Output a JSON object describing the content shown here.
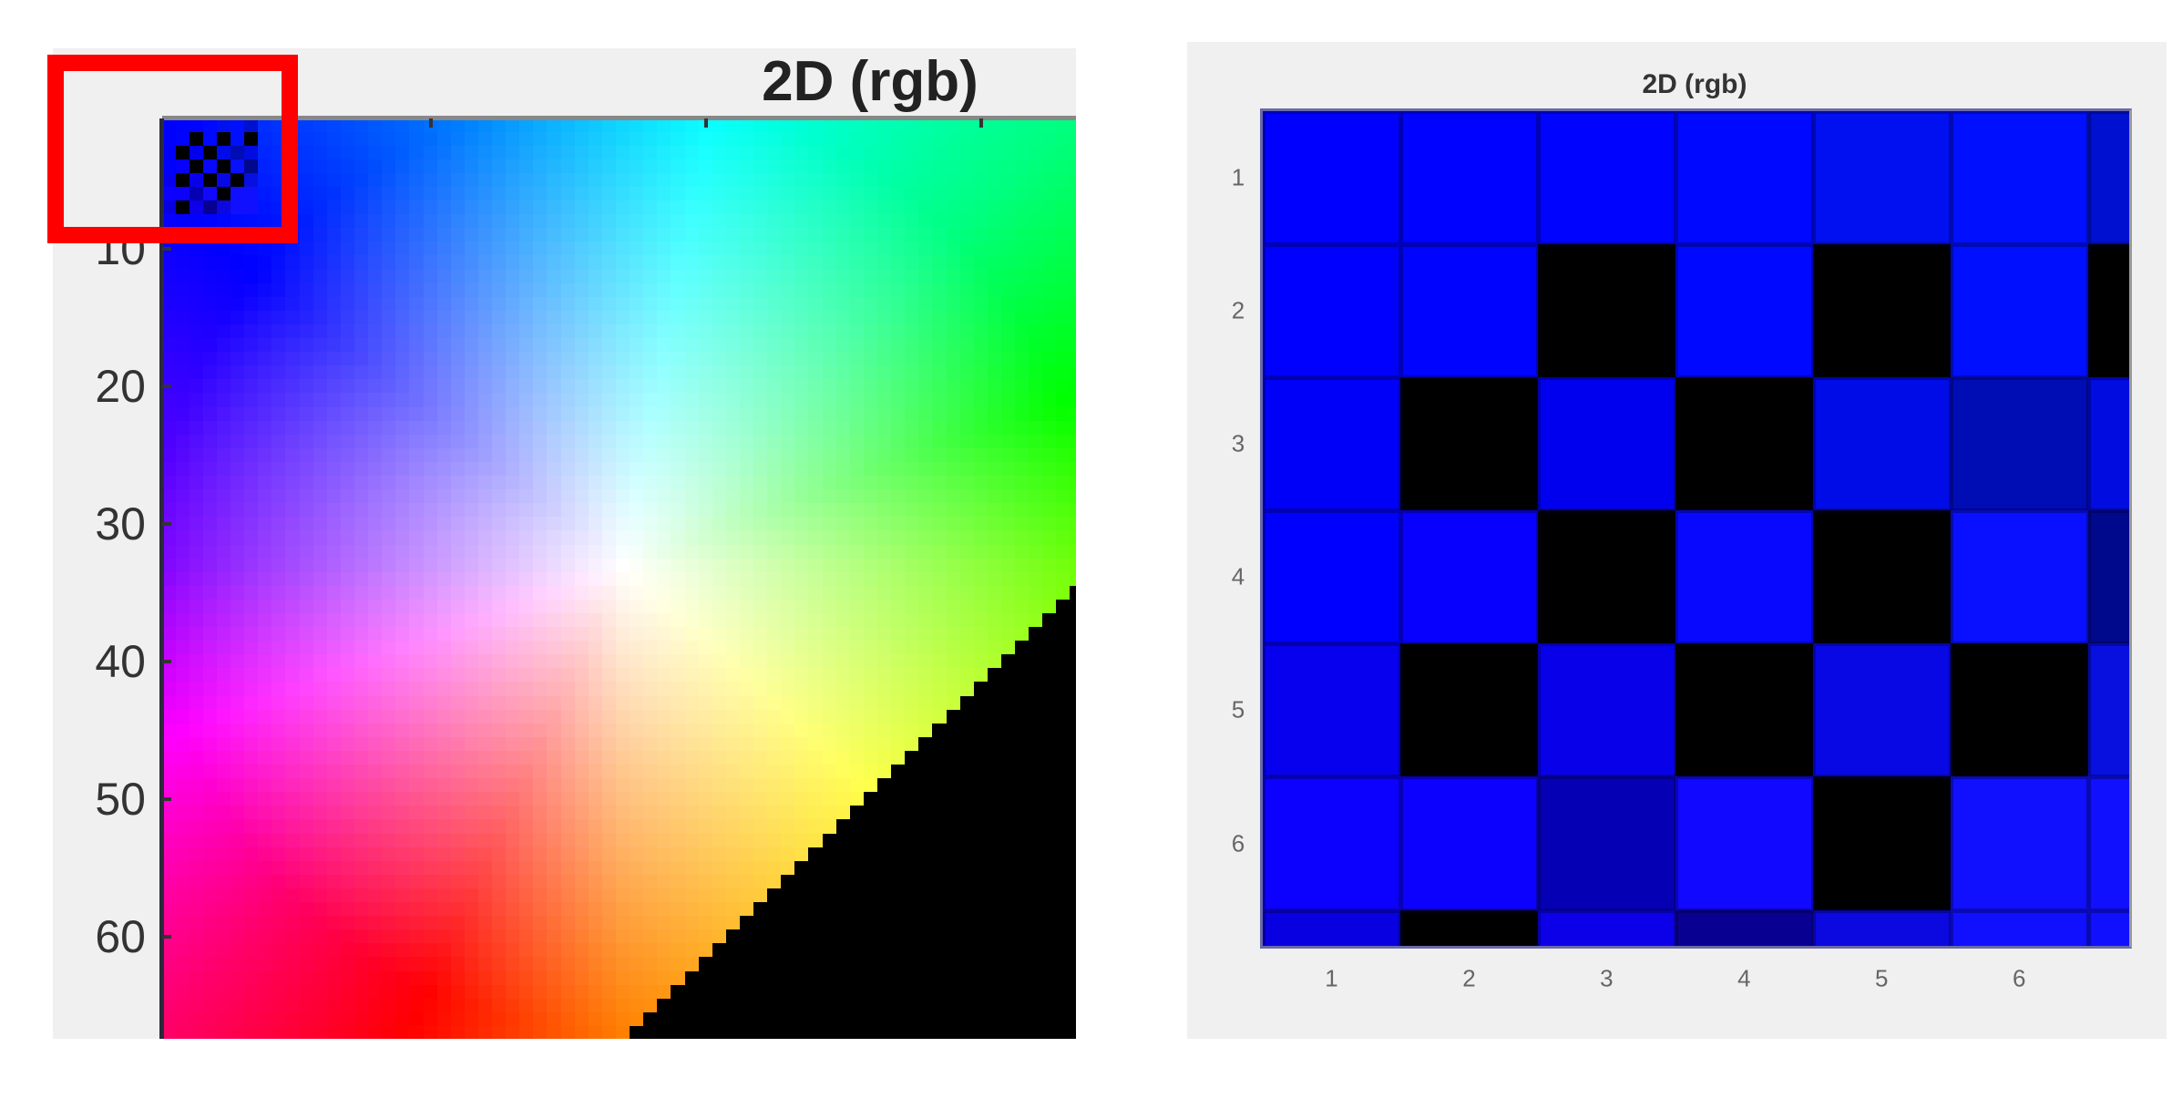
{
  "chart_data": [
    {
      "type": "heatmap",
      "title": "2D (rgb)",
      "xlim": [
        0.5,
        66.9
      ],
      "ylim": [
        0.5,
        67.4
      ],
      "y_reversed": true,
      "xticks": [
        20,
        40,
        60
      ],
      "xtick_labels": [],
      "yticks": [
        10,
        20,
        30,
        40,
        50,
        60
      ],
      "ytick_labels": [
        "10",
        "20",
        "30",
        "40",
        "50",
        "60"
      ],
      "highlight_box_color": "#ff0000",
      "masked_color": "#000000",
      "grid": false
    },
    {
      "type": "heatmap",
      "title": "2D (rgb)",
      "xlim": [
        0.5,
        6.8
      ],
      "ylim": [
        0.5,
        6.77
      ],
      "y_reversed": true,
      "xticks": [
        1,
        2,
        3,
        4,
        5,
        6
      ],
      "xtick_labels": [
        "1",
        "2",
        "3",
        "4",
        "5",
        "6"
      ],
      "yticks": [
        1,
        2,
        3,
        4,
        5,
        6
      ],
      "ytick_labels": [
        "1",
        "2",
        "3",
        "4",
        "5",
        "6"
      ],
      "grid": false,
      "pixels": [
        [
          "#0000ff",
          "#0002ff",
          "#0004ff",
          "#0008ff",
          "#0010f0",
          "#0010ff",
          "#0010d0"
        ],
        [
          "#0000ff",
          "#0004ff",
          "#000000",
          "#0008ff",
          "#000000",
          "#0010ff",
          "#000000"
        ],
        [
          "#0000f8",
          "#000000",
          "#0000ee",
          "#000000",
          "#000ce8",
          "#000cb4",
          "#000ce0"
        ],
        [
          "#0000ff",
          "#0800ff",
          "#000000",
          "#0808ff",
          "#000000",
          "#0810ff",
          "#00088c"
        ],
        [
          "#0600ee",
          "#000000",
          "#0800e8",
          "#000000",
          "#0808e4",
          "#000000",
          "#0810e0"
        ],
        [
          "#0c00ff",
          "#0c00ff",
          "#0600b4",
          "#1008ff",
          "#000000",
          "#1010ff",
          "#1010ff"
        ],
        [
          "#0800e0",
          "#000000",
          "#0c00e8",
          "#080090",
          "#0c08e0",
          "#1010ff",
          "#1010ff"
        ]
      ]
    }
  ]
}
